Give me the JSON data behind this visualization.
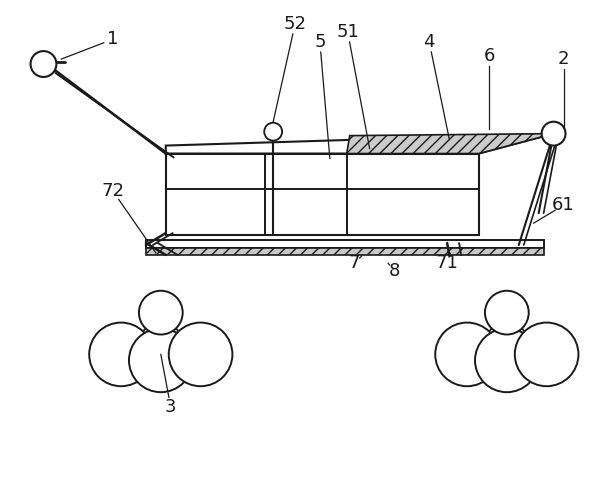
{
  "bg_color": "#ffffff",
  "line_color": "#1a1a1a",
  "figsize": [
    6.05,
    4.93
  ],
  "dpi": 100
}
